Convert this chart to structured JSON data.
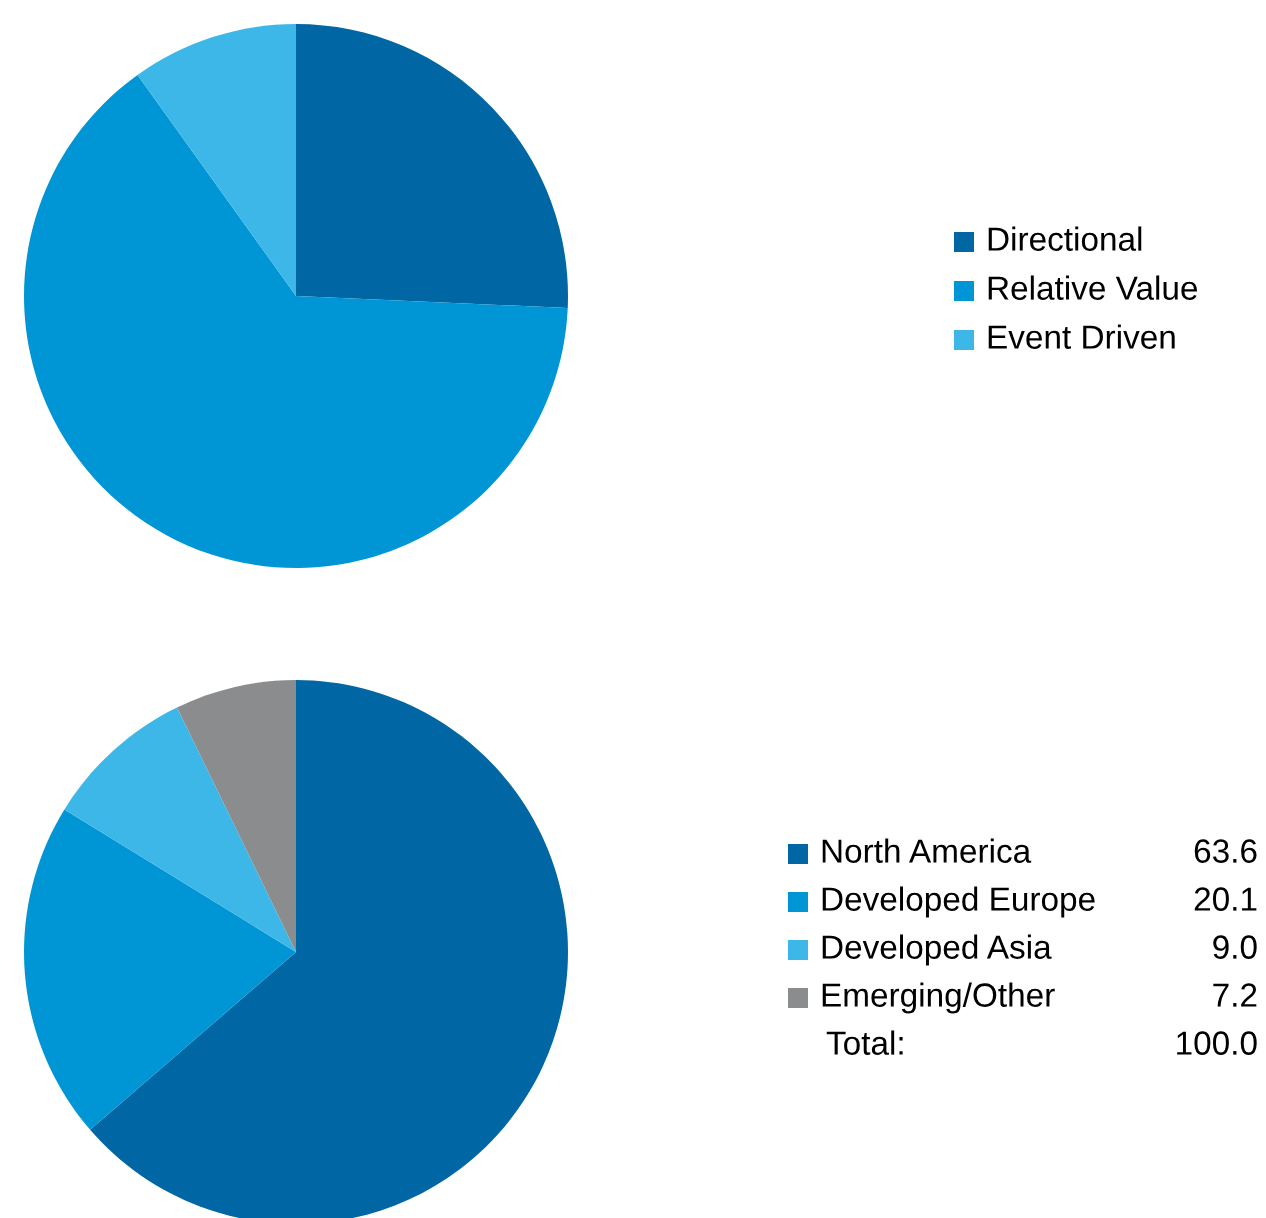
{
  "chart_data": [
    {
      "type": "pie",
      "categories": [
        "Directional",
        "Relative Value",
        "Event Driven"
      ],
      "values": [
        25.7,
        64.4,
        9.9
      ],
      "colors": [
        "#0066a4",
        "#0096d6",
        "#3db6e8"
      ],
      "legend": "right"
    },
    {
      "type": "pie",
      "categories": [
        "North America",
        "Developed Europe",
        "Developed Asia",
        "Emerging/Other"
      ],
      "values": [
        63.6,
        20.1,
        9.0,
        7.2
      ],
      "colors": [
        "#0066a4",
        "#0096d6",
        "#3db6e8",
        "#8a8c8e"
      ],
      "legend": "right",
      "value_labels": [
        "63.6",
        "20.1",
        "9.0",
        "7.2"
      ],
      "annotations": [
        "Total:"
      ],
      "totals": [
        "100.0"
      ]
    }
  ]
}
